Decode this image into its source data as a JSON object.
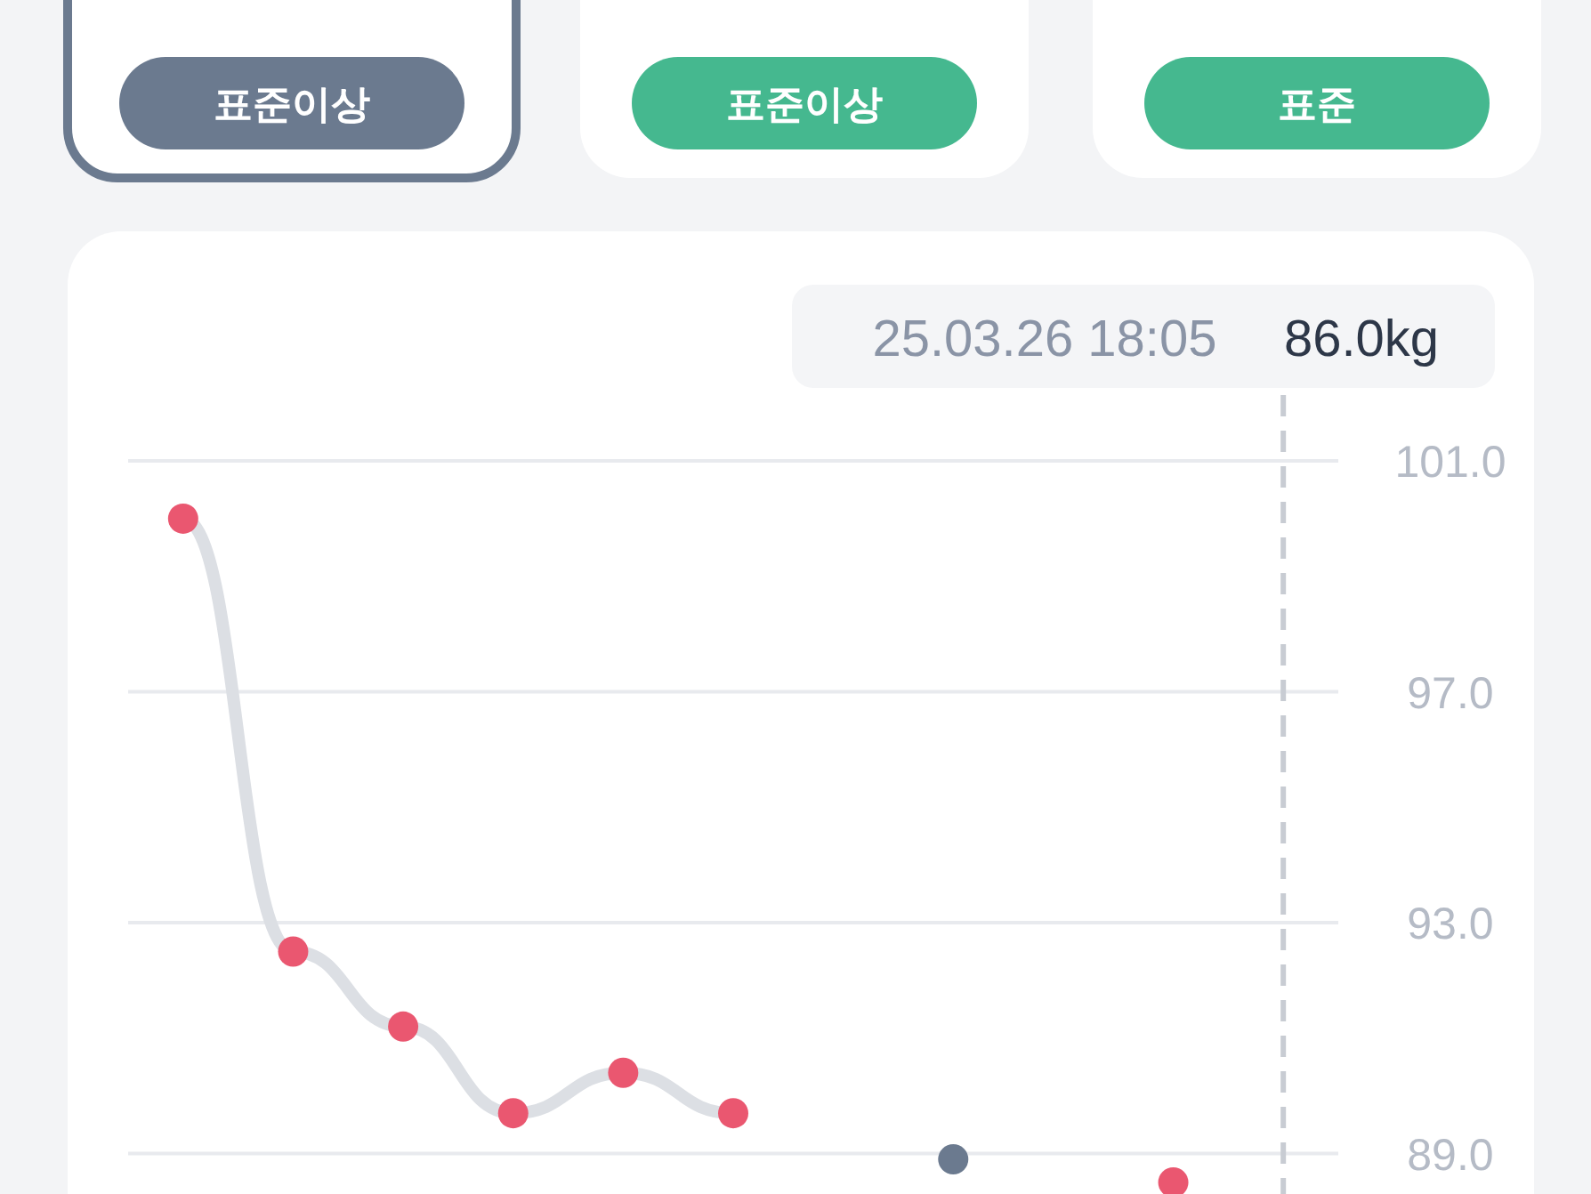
{
  "chart_data": [
    {
      "type": "other",
      "annotations": [
        "표준이상",
        "표준이상",
        "표준"
      ],
      "colors": [
        "#6b7a8f",
        "#45b88f",
        "#45b88f"
      ]
    },
    {
      "type": "line",
      "categories": [
        null,
        null,
        null,
        null,
        null,
        null,
        null,
        null,
        null,
        null,
        null
      ],
      "series": [
        {
          "color": "#dcdfe4",
          "colors": [
            "#ea5770",
            "#ea5770",
            "#ea5770",
            "#ea5770",
            "#ea5770",
            "#ea5770",
            null,
            "#6b7a8f",
            null,
            "#ea5770",
            null
          ],
          "values": [
            100.0,
            92.5,
            91.2,
            89.7,
            90.4,
            89.7,
            null,
            88.9,
            null,
            88.5,
            null
          ]
        }
      ],
      "ylim": [
        88.3,
        101
      ],
      "yticks": [
        {
          "value": 101,
          "label": "101.0"
        },
        {
          "value": 97,
          "label": "97.0"
        },
        {
          "value": 93,
          "label": "93.0"
        },
        {
          "value": 89,
          "label": "89.0"
        }
      ],
      "grid": "y",
      "marker": "circle",
      "tick_labels": "y",
      "annotations": [
        "25.03.26 18:05",
        "86.0kg"
      ]
    }
  ]
}
